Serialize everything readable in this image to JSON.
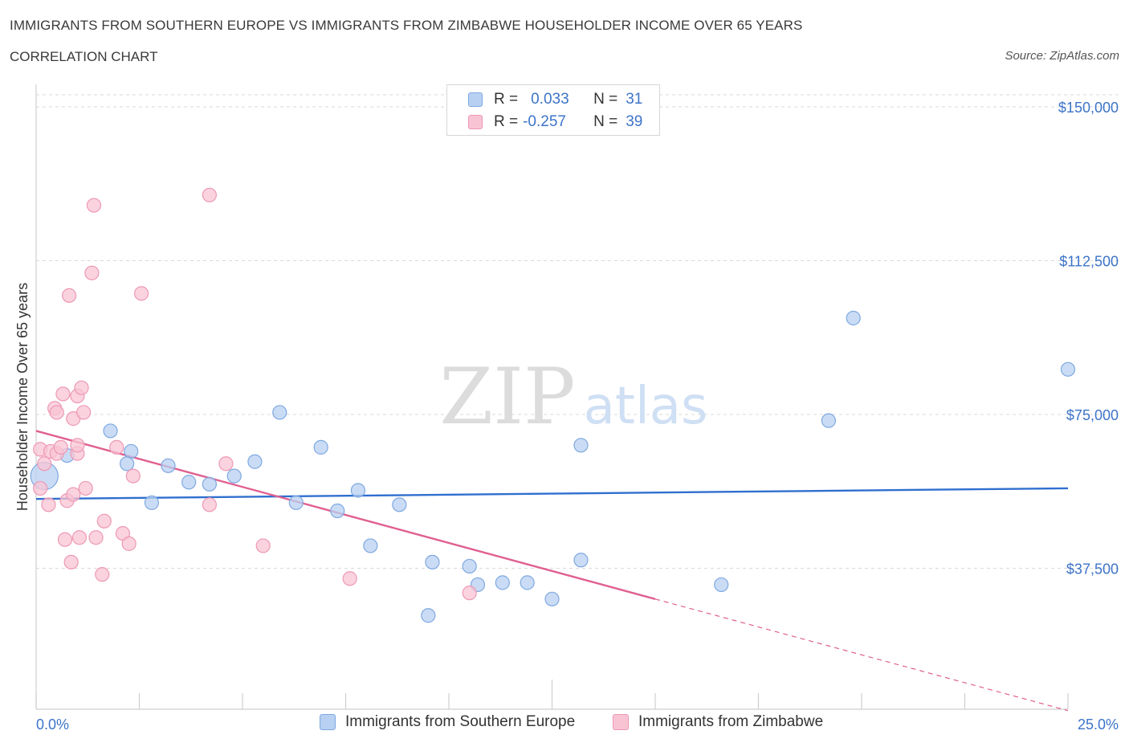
{
  "header": {
    "title": "IMMIGRANTS FROM SOUTHERN EUROPE VS IMMIGRANTS FROM ZIMBABWE HOUSEHOLDER INCOME OVER 65 YEARS",
    "subtitle": "CORRELATION CHART",
    "source": "Source: ZipAtlas.com"
  },
  "watermark": {
    "zip": "ZIP",
    "atlas": "atlas"
  },
  "legend": {
    "r_label": "R =",
    "n_label": "N =",
    "rows": [
      {
        "r": "0.033",
        "n": "31"
      },
      {
        "r": "-0.257",
        "n": "39"
      }
    ]
  },
  "colors": {
    "blue_fill": "#b8d0f2",
    "blue_stroke": "#7ea8e0",
    "blue_line": "#2f6fcf",
    "pink_fill": "#f8c4d4",
    "pink_stroke": "#ee98b4",
    "pink_line": "#e06090",
    "grid": "#d9d9d9",
    "axis_text": "#3d74c8"
  },
  "chart_data": {
    "type": "scatter",
    "title": "IMMIGRANTS FROM SOUTHERN EUROPE VS IMMIGRANTS FROM ZIMBABWE HOUSEHOLDER INCOME OVER 65 YEARS",
    "xlabel": "",
    "ylabel": "Householder Income Over 65 years",
    "xlim": [
      0,
      25
    ],
    "ylim": [
      0,
      150000
    ],
    "x_tick_labels": [
      "0.0%",
      "25.0%"
    ],
    "y_ticks": [
      37500,
      75000,
      112500,
      150000
    ],
    "y_tick_labels": [
      "$37,500",
      "$75,000",
      "$112,500",
      "$150,000"
    ],
    "series": [
      {
        "name": "Immigrants from Southern Europe",
        "color": "#7ea8e0",
        "points": [
          {
            "x": 0.2,
            "y": 60000,
            "size": "large"
          },
          {
            "x": 0.75,
            "y": 65000
          },
          {
            "x": 1.8,
            "y": 71000
          },
          {
            "x": 2.3,
            "y": 66000
          },
          {
            "x": 2.2,
            "y": 63000
          },
          {
            "x": 2.8,
            "y": 53500
          },
          {
            "x": 3.2,
            "y": 62500
          },
          {
            "x": 3.7,
            "y": 58500
          },
          {
            "x": 4.2,
            "y": 58000
          },
          {
            "x": 4.8,
            "y": 60000
          },
          {
            "x": 5.3,
            "y": 63500
          },
          {
            "x": 5.9,
            "y": 75500
          },
          {
            "x": 6.3,
            "y": 53500
          },
          {
            "x": 6.9,
            "y": 67000
          },
          {
            "x": 7.3,
            "y": 51500
          },
          {
            "x": 7.8,
            "y": 56500
          },
          {
            "x": 8.1,
            "y": 43000
          },
          {
            "x": 8.8,
            "y": 53000
          },
          {
            "x": 9.6,
            "y": 39000
          },
          {
            "x": 9.5,
            "y": 26000
          },
          {
            "x": 10.5,
            "y": 38000
          },
          {
            "x": 10.7,
            "y": 33500
          },
          {
            "x": 11.3,
            "y": 34000
          },
          {
            "x": 11.9,
            "y": 34000
          },
          {
            "x": 12.5,
            "y": 30000
          },
          {
            "x": 13.2,
            "y": 39500
          },
          {
            "x": 13.2,
            "y": 67500
          },
          {
            "x": 16.6,
            "y": 33500
          },
          {
            "x": 19.2,
            "y": 73500
          },
          {
            "x": 19.8,
            "y": 98500
          },
          {
            "x": 25.0,
            "y": 86000
          }
        ],
        "trend": {
          "x0": 0,
          "y0": 54400,
          "x1": 25,
          "y1": 57000
        }
      },
      {
        "name": "Immigrants from Zimbabwe",
        "color": "#ee98b4",
        "points": [
          {
            "x": 0.1,
            "y": 57000
          },
          {
            "x": 0.1,
            "y": 66500
          },
          {
            "x": 0.3,
            "y": 53000
          },
          {
            "x": 0.35,
            "y": 66000
          },
          {
            "x": 0.45,
            "y": 76500
          },
          {
            "x": 0.5,
            "y": 65500
          },
          {
            "x": 0.5,
            "y": 75500
          },
          {
            "x": 0.6,
            "y": 67000
          },
          {
            "x": 0.65,
            "y": 80000
          },
          {
            "x": 0.75,
            "y": 54000
          },
          {
            "x": 0.8,
            "y": 104000
          },
          {
            "x": 0.85,
            "y": 39000
          },
          {
            "x": 0.9,
            "y": 55500
          },
          {
            "x": 0.9,
            "y": 74000
          },
          {
            "x": 1.0,
            "y": 65500
          },
          {
            "x": 1.0,
            "y": 67500
          },
          {
            "x": 1.0,
            "y": 79500
          },
          {
            "x": 1.05,
            "y": 45000
          },
          {
            "x": 1.1,
            "y": 81500
          },
          {
            "x": 1.15,
            "y": 75500
          },
          {
            "x": 1.2,
            "y": 57000
          },
          {
            "x": 1.35,
            "y": 109500
          },
          {
            "x": 1.4,
            "y": 126000
          },
          {
            "x": 1.45,
            "y": 45000
          },
          {
            "x": 1.6,
            "y": 36000
          },
          {
            "x": 1.65,
            "y": 49000
          },
          {
            "x": 1.95,
            "y": 67000
          },
          {
            "x": 2.1,
            "y": 46000
          },
          {
            "x": 2.25,
            "y": 43500
          },
          {
            "x": 2.35,
            "y": 60000
          },
          {
            "x": 2.55,
            "y": 104500
          },
          {
            "x": 4.2,
            "y": 53000
          },
          {
            "x": 4.2,
            "y": 128500
          },
          {
            "x": 4.6,
            "y": 63000
          },
          {
            "x": 5.5,
            "y": 43000
          },
          {
            "x": 7.6,
            "y": 35000
          },
          {
            "x": 10.5,
            "y": 31500
          },
          {
            "x": 0.2,
            "y": 63000
          },
          {
            "x": 0.7,
            "y": 44500
          }
        ],
        "trend": {
          "x0": 0,
          "y0": 71000,
          "x1": 15,
          "y1": 30000,
          "dashed_to_x": 25,
          "dashed_to_y": 2800
        }
      }
    ]
  }
}
